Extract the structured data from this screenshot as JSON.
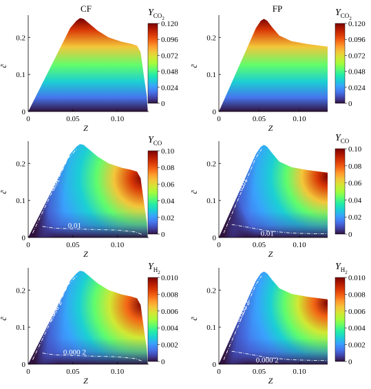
{
  "column_titles": [
    "CF",
    "FP"
  ],
  "colormap": [
    "#30123b",
    "#4145ab",
    "#4675ed",
    "#39a2fc",
    "#1bcfd4",
    "#24eca6",
    "#61fc6c",
    "#a4fc3b",
    "#d1e834",
    "#f3c63a",
    "#fe9b2d",
    "#f36315",
    "#d93806",
    "#b11901",
    "#7a0402"
  ],
  "chart_data": [
    {
      "type": "heatmap",
      "id": "cf-co2",
      "column": "CF",
      "xlabel": "Z",
      "ylabel": "c̃",
      "xlim": [
        0,
        0.135
      ],
      "ylim": [
        0,
        0.26
      ],
      "x_ticks": [
        "0",
        "0.05",
        "0.10"
      ],
      "y_ticks": [
        "0",
        "0.1",
        "0.2"
      ],
      "colorbar": {
        "label": "Y",
        "label_sub": "CO",
        "label_sub2": "2",
        "ticks": [
          "0.120",
          "0.096",
          "0.072",
          "0.048",
          "0.024",
          "0"
        ],
        "max": 0.12
      },
      "annotations": []
    },
    {
      "type": "heatmap",
      "id": "fp-co2",
      "column": "FP",
      "xlabel": "Z",
      "ylabel": "c̃",
      "xlim": [
        0,
        0.135
      ],
      "ylim": [
        0,
        0.26
      ],
      "x_ticks": [
        "0",
        "0.05",
        "0.10"
      ],
      "y_ticks": [
        "0",
        "0.1",
        "0.2"
      ],
      "colorbar": {
        "label": "Y",
        "label_sub": "CO",
        "label_sub2": "2",
        "ticks": [
          "0.120",
          "0.096",
          "0.072",
          "0.048",
          "0.024",
          "0"
        ],
        "max": 0.12
      },
      "annotations": []
    },
    {
      "type": "heatmap",
      "id": "cf-co",
      "column": "CF",
      "xlabel": "Z",
      "ylabel": "c̃",
      "xlim": [
        0,
        0.135
      ],
      "ylim": [
        0,
        0.26
      ],
      "x_ticks": [
        "0",
        "0.05",
        "0.10"
      ],
      "y_ticks": [
        "0",
        "0.1",
        "0.2"
      ],
      "colorbar": {
        "label": "Y",
        "label_sub": "CO",
        "label_sub2": "",
        "ticks": [
          "0.10",
          "0.08",
          "0.06",
          "0.04",
          "0.02",
          "0"
        ],
        "max": 0.1
      },
      "annotations": [
        "0.01",
        "0.01"
      ]
    },
    {
      "type": "heatmap",
      "id": "fp-co",
      "column": "FP",
      "xlabel": "Z",
      "ylabel": "c̃",
      "xlim": [
        0,
        0.135
      ],
      "ylim": [
        0,
        0.26
      ],
      "x_ticks": [
        "0",
        "0.05",
        "0.10"
      ],
      "y_ticks": [
        "0",
        "0.1",
        "0.2"
      ],
      "colorbar": {
        "label": "Y",
        "label_sub": "CO",
        "label_sub2": "",
        "ticks": [
          "0.10",
          "0.08",
          "0.06",
          "0.04",
          "0.02",
          "0"
        ],
        "max": 0.1
      },
      "annotations": [
        "0.01",
        "0.01"
      ]
    },
    {
      "type": "heatmap",
      "id": "cf-h2",
      "column": "CF",
      "xlabel": "Z",
      "ylabel": "c̃",
      "xlim": [
        0,
        0.135
      ],
      "ylim": [
        0,
        0.26
      ],
      "x_ticks": [
        "0",
        "0.05",
        "0.10"
      ],
      "y_ticks": [
        "0",
        "0.1",
        "0.2"
      ],
      "colorbar": {
        "label": "Y",
        "label_sub": "H",
        "label_sub2": "2",
        "ticks": [
          "0.010",
          "0.008",
          "0.006",
          "0.004",
          "0.002",
          "0"
        ],
        "max": 0.01
      },
      "annotations": [
        "0.000 2",
        "0.000 2"
      ]
    },
    {
      "type": "heatmap",
      "id": "fp-h2",
      "column": "FP",
      "xlabel": "Z",
      "ylabel": "c̃",
      "xlim": [
        0,
        0.135
      ],
      "ylim": [
        0,
        0.26
      ],
      "x_ticks": [
        "0",
        "0.05",
        "0.10"
      ],
      "y_ticks": [
        "0",
        "0.1",
        "0.2"
      ],
      "colorbar": {
        "label": "Y",
        "label_sub": "H",
        "label_sub2": "2",
        "ticks": [
          "0.010",
          "0.008",
          "0.006",
          "0.004",
          "0.002",
          "0"
        ],
        "max": 0.01
      },
      "annotations": [
        "0.000 2",
        "0.000 2"
      ]
    }
  ]
}
